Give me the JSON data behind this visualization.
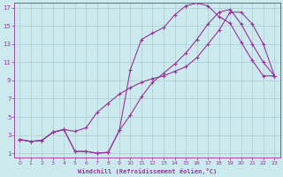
{
  "xlabel": "Windchill (Refroidissement éolien,°C)",
  "xlim": [
    -0.5,
    23.5
  ],
  "ylim": [
    0.5,
    17.5
  ],
  "xticks": [
    0,
    1,
    2,
    3,
    4,
    5,
    6,
    7,
    8,
    9,
    10,
    11,
    12,
    13,
    14,
    15,
    16,
    17,
    18,
    19,
    20,
    21,
    22,
    23
  ],
  "yticks": [
    1,
    3,
    5,
    7,
    9,
    11,
    13,
    15,
    17
  ],
  "bg_color": "#cce9ee",
  "grid_color": "#aacdd5",
  "line_color": "#993399",
  "line1_x": [
    0,
    1,
    2,
    3,
    4,
    5,
    6,
    7,
    8,
    9,
    10,
    11,
    12,
    13,
    14,
    15,
    16,
    17,
    18,
    19,
    20,
    21,
    22,
    23
  ],
  "line1_y": [
    2.5,
    2.3,
    2.4,
    3.3,
    3.6,
    1.2,
    1.2,
    1.0,
    1.1,
    3.5,
    10.2,
    13.5,
    14.2,
    14.8,
    16.2,
    17.2,
    17.5,
    17.2,
    16.0,
    15.3,
    13.2,
    11.2,
    9.5,
    9.5
  ],
  "line2_x": [
    0,
    1,
    2,
    3,
    4,
    5,
    6,
    7,
    8,
    9,
    10,
    11,
    12,
    13,
    14,
    15,
    16,
    17,
    18,
    19,
    20,
    21,
    22,
    23
  ],
  "line2_y": [
    2.5,
    2.3,
    2.4,
    3.3,
    3.6,
    3.4,
    3.8,
    5.5,
    6.5,
    7.5,
    8.2,
    8.8,
    9.2,
    9.5,
    10.0,
    10.5,
    11.5,
    13.0,
    14.5,
    16.5,
    16.5,
    15.2,
    13.0,
    9.5
  ],
  "line3_x": [
    0,
    1,
    2,
    3,
    4,
    5,
    6,
    7,
    8,
    9,
    10,
    11,
    12,
    13,
    14,
    15,
    16,
    17,
    18,
    19,
    20,
    21,
    22,
    23
  ],
  "line3_y": [
    2.5,
    2.3,
    2.4,
    3.3,
    3.6,
    1.2,
    1.2,
    1.0,
    1.1,
    3.5,
    5.2,
    7.2,
    8.8,
    9.8,
    10.8,
    12.0,
    13.5,
    15.2,
    16.5,
    16.8,
    15.2,
    13.0,
    11.0,
    9.5
  ]
}
